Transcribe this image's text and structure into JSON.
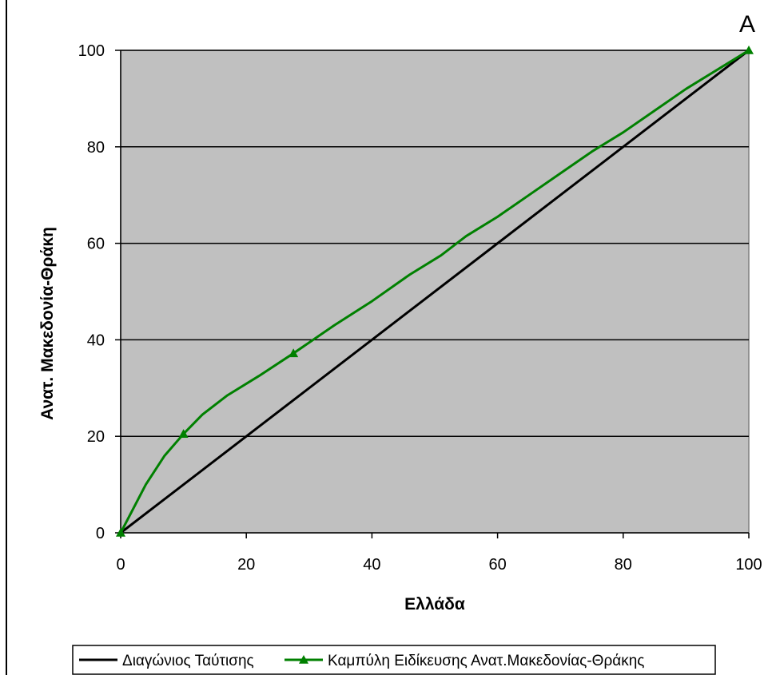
{
  "chart_data": {
    "type": "line",
    "corner_label": "A",
    "xlabel": "Ελλάδα",
    "ylabel": "Ανατ. Μακεδονία-Θράκη",
    "xlim": [
      0,
      100
    ],
    "ylim": [
      0,
      100
    ],
    "x_ticks": [
      "0",
      "20",
      "40",
      "60",
      "80",
      "100"
    ],
    "y_ticks": [
      "0",
      "20",
      "40",
      "60",
      "80",
      "100"
    ],
    "grid": "horizontal",
    "legend_position": "bottom",
    "plot_background": "#c0c0c0",
    "series": [
      {
        "name": "Διαγώνιος Ταύτισης",
        "color": "#000000",
        "marker": "none",
        "points": [
          [
            0,
            0
          ],
          [
            100,
            100
          ]
        ]
      },
      {
        "name": "Καμπύλη Ειδίκευσης Ανατ.Μακεδονίας-Θράκης",
        "color": "#008000",
        "marker": "triangle",
        "points": [
          [
            0,
            0
          ],
          [
            4,
            10
          ],
          [
            7,
            16
          ],
          [
            10,
            20.5
          ],
          [
            13,
            24.5
          ],
          [
            17,
            28.5
          ],
          [
            22,
            32.5
          ],
          [
            27.5,
            37.2
          ],
          [
            34,
            43
          ],
          [
            40,
            48
          ],
          [
            46,
            53.5
          ],
          [
            51,
            57.5
          ],
          [
            55,
            61.5
          ],
          [
            60,
            65.5
          ],
          [
            65,
            70
          ],
          [
            70,
            74.5
          ],
          [
            75,
            79
          ],
          [
            80,
            83
          ],
          [
            85,
            87.5
          ],
          [
            90,
            92
          ],
          [
            95,
            96
          ],
          [
            100,
            100
          ]
        ],
        "marker_points": [
          [
            0,
            0
          ],
          [
            10,
            20.5
          ],
          [
            27.5,
            37.2
          ],
          [
            100,
            100
          ]
        ]
      }
    ]
  }
}
